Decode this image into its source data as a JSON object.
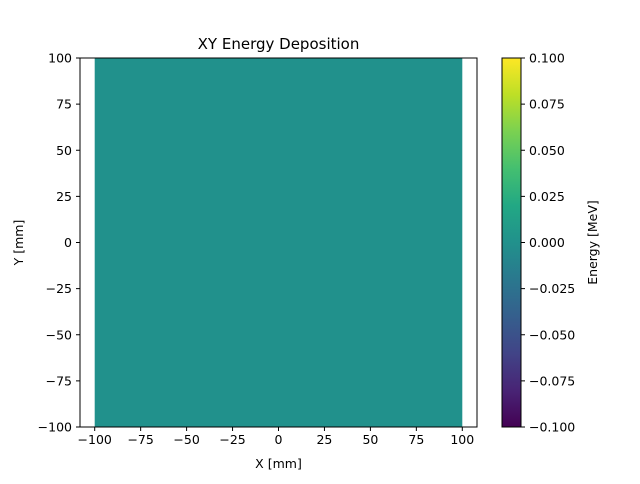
{
  "chart_data": {
    "type": "heatmap",
    "title": "XY Energy Deposition",
    "xlabel": "X [mm]",
    "ylabel": "Y [mm]",
    "xlim": [
      -108,
      108
    ],
    "ylim": [
      -100,
      100
    ],
    "xticks": [
      -100,
      -75,
      -50,
      -25,
      0,
      25,
      50,
      75,
      100
    ],
    "xtick_labels": [
      "−100",
      "−75",
      "−50",
      "−25",
      "0",
      "25",
      "50",
      "75",
      "100"
    ],
    "yticks": [
      -100,
      -75,
      -50,
      -25,
      0,
      25,
      50,
      75,
      100
    ],
    "ytick_labels": [
      "−100",
      "−75",
      "−50",
      "−25",
      "0",
      "25",
      "50",
      "75",
      "100"
    ],
    "data": {
      "x_extent": [
        -100,
        100
      ],
      "y_extent": [
        -100,
        100
      ],
      "value": 0.0
    },
    "colorbar": {
      "label": "Energy [MeV]",
      "colormap": "viridis",
      "vmin": -0.1,
      "vmax": 0.1,
      "ticks": [
        -0.1,
        -0.075,
        -0.05,
        -0.025,
        0,
        0.025,
        0.05,
        0.075,
        0.1
      ],
      "tick_labels": [
        "−0.100",
        "−0.075",
        "−0.050",
        "−0.025",
        "0.000",
        "0.025",
        "0.050",
        "0.075",
        "0.100"
      ]
    },
    "grid": false
  }
}
